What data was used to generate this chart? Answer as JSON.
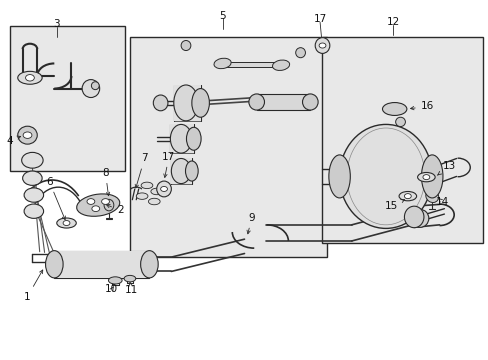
{
  "background_color": "#ffffff",
  "box_bg": "#e8e8e8",
  "line_color": "#2a2a2a",
  "boxes": {
    "b1": [
      0.02,
      0.52,
      0.24,
      0.43
    ],
    "b2": [
      0.26,
      0.28,
      0.41,
      0.62
    ],
    "b3": [
      0.655,
      0.32,
      0.335,
      0.58
    ]
  },
  "labels": {
    "1": [
      0.055,
      0.175,
      0.075,
      0.21
    ],
    "2": [
      0.235,
      0.415,
      0.19,
      0.44
    ],
    "3": [
      0.115,
      0.935,
      0.115,
      0.9
    ],
    "4": [
      0.025,
      0.62,
      0.045,
      0.645
    ],
    "5": [
      0.455,
      0.955,
      0.455,
      0.915
    ],
    "6": [
      0.115,
      0.5,
      0.13,
      0.465
    ],
    "7": [
      0.305,
      0.56,
      0.3,
      0.52
    ],
    "8": [
      0.225,
      0.52,
      0.235,
      0.485
    ],
    "9": [
      0.51,
      0.395,
      0.505,
      0.435
    ],
    "10": [
      0.23,
      0.2,
      0.24,
      0.235
    ],
    "11": [
      0.265,
      0.195,
      0.265,
      0.235
    ],
    "12": [
      0.805,
      0.935,
      0.805,
      0.9
    ],
    "13": [
      0.91,
      0.54,
      0.875,
      0.535
    ],
    "14": [
      0.895,
      0.44,
      0.875,
      0.455
    ],
    "15": [
      0.805,
      0.43,
      0.825,
      0.455
    ],
    "16": [
      0.875,
      0.7,
      0.845,
      0.695
    ],
    "17a": [
      0.655,
      0.945,
      0.655,
      0.895
    ],
    "17b": [
      0.345,
      0.565,
      0.335,
      0.525
    ]
  }
}
